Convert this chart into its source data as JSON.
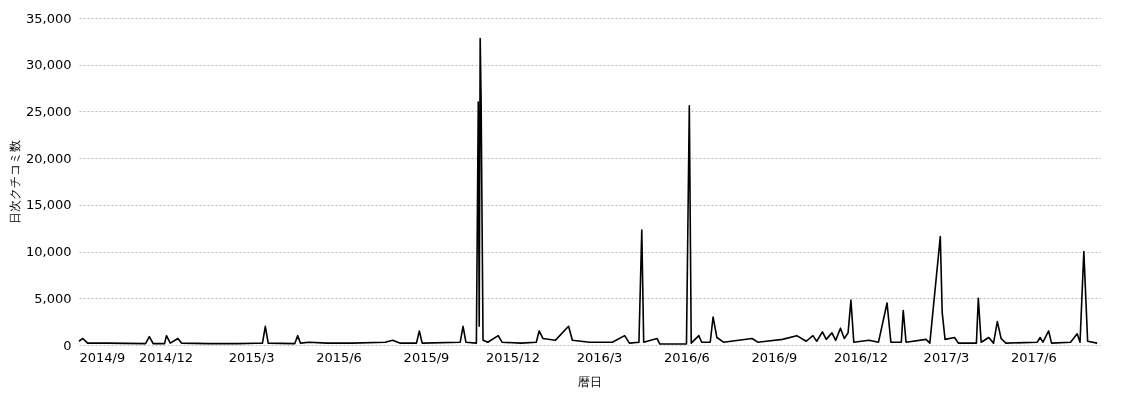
{
  "chart_data": {
    "type": "line",
    "xlabel": "暦日",
    "ylabel": "日次クチコミ数",
    "x": [
      "2014-09-01",
      "2014-09-05",
      "2014-09-10",
      "2014-10-01",
      "2014-11-10",
      "2014-11-14",
      "2014-11-18",
      "2014-11-30",
      "2014-12-02",
      "2014-12-06",
      "2014-12-14",
      "2014-12-18",
      "2015-01-15",
      "2015-02-15",
      "2015-03-13",
      "2015-03-16",
      "2015-03-19",
      "2015-04-16",
      "2015-04-19",
      "2015-04-22",
      "2015-05-01",
      "2015-05-20",
      "2015-06-15",
      "2015-07-20",
      "2015-07-28",
      "2015-08-05",
      "2015-08-22",
      "2015-08-25",
      "2015-08-28",
      "2015-10-07",
      "2015-10-10",
      "2015-10-13",
      "2015-10-24",
      "2015-10-26",
      "2015-10-27",
      "2015-10-28",
      "2015-10-29",
      "2015-10-31",
      "2015-11-05",
      "2015-11-16",
      "2015-11-20",
      "2015-12-10",
      "2015-12-26",
      "2015-12-29",
      "2016-01-02",
      "2016-01-15",
      "2016-01-29",
      "2016-02-02",
      "2016-02-20",
      "2016-03-15",
      "2016-03-28",
      "2016-04-02",
      "2016-04-12",
      "2016-04-15",
      "2016-04-17",
      "2016-05-01",
      "2016-05-04",
      "2016-06-01",
      "2016-06-04",
      "2016-06-06",
      "2016-06-14",
      "2016-06-17",
      "2016-06-26",
      "2016-06-29",
      "2016-07-03",
      "2016-07-10",
      "2016-08-09",
      "2016-08-15",
      "2016-09-10",
      "2016-09-25",
      "2016-10-05",
      "2016-10-12",
      "2016-10-16",
      "2016-10-22",
      "2016-10-26",
      "2016-11-01",
      "2016-11-05",
      "2016-11-10",
      "2016-11-14",
      "2016-11-18",
      "2016-11-21",
      "2016-11-24",
      "2016-12-10",
      "2016-12-20",
      "2016-12-29",
      "2017-01-02",
      "2017-01-13",
      "2017-01-15",
      "2017-01-18",
      "2017-02-08",
      "2017-02-12",
      "2017-02-23",
      "2017-02-25",
      "2017-02-28",
      "2017-03-10",
      "2017-03-14",
      "2017-04-02",
      "2017-04-04",
      "2017-04-07",
      "2017-04-15",
      "2017-04-20",
      "2017-04-24",
      "2017-04-28",
      "2017-05-03",
      "2017-06-05",
      "2017-06-08",
      "2017-06-11",
      "2017-06-17",
      "2017-06-20",
      "2017-07-10",
      "2017-07-17",
      "2017-07-20",
      "2017-07-24",
      "2017-07-28",
      "2017-08-07"
    ],
    "series": [
      {
        "color": "#000000",
        "values": [
          400,
          700,
          200,
          200,
          150,
          900,
          150,
          150,
          1000,
          200,
          700,
          200,
          150,
          150,
          200,
          2000,
          200,
          150,
          1000,
          200,
          300,
          200,
          200,
          300,
          500,
          200,
          200,
          1500,
          200,
          300,
          2000,
          300,
          200,
          26000,
          2000,
          32800,
          26000,
          500,
          300,
          1000,
          300,
          200,
          300,
          1500,
          700,
          500,
          2000,
          500,
          300,
          300,
          1000,
          200,
          300,
          12300,
          300,
          700,
          100,
          100,
          25600,
          200,
          1000,
          300,
          300,
          3000,
          800,
          300,
          700,
          300,
          600,
          1000,
          400,
          1000,
          400,
          1400,
          600,
          1300,
          500,
          1800,
          700,
          1300,
          4800,
          300,
          500,
          300,
          4500,
          300,
          300,
          3700,
          300,
          600,
          200,
          11600,
          3500,
          600,
          800,
          200,
          200,
          5000,
          300,
          800,
          200,
          2500,
          700,
          200,
          300,
          800,
          300,
          1500,
          200,
          300,
          1200,
          300,
          10000,
          400,
          200
        ]
      }
    ],
    "xlim": [
      "2014-09-01",
      "2017-08-10"
    ],
    "xticks": [
      {
        "value": "2014-09-01",
        "label": "2014/9"
      },
      {
        "value": "2014-12-01",
        "label": "2014/12"
      },
      {
        "value": "2015-03-01",
        "label": "2015/3"
      },
      {
        "value": "2015-06-01",
        "label": "2015/6"
      },
      {
        "value": "2015-09-01",
        "label": "2015/9"
      },
      {
        "value": "2015-12-01",
        "label": "2015/12"
      },
      {
        "value": "2016-03-01",
        "label": "2016/3"
      },
      {
        "value": "2016-06-01",
        "label": "2016/6"
      },
      {
        "value": "2016-09-01",
        "label": "2016/9"
      },
      {
        "value": "2016-12-01",
        "label": "2016/12"
      },
      {
        "value": "2017-03-01",
        "label": "2017/3"
      },
      {
        "value": "2017-06-01",
        "label": "2017/6"
      }
    ],
    "ylim": [
      0,
      35000
    ],
    "yticks": [
      {
        "value": 0,
        "label": "0"
      },
      {
        "value": 5000,
        "label": "5,000"
      },
      {
        "value": 10000,
        "label": "10,000"
      },
      {
        "value": 15000,
        "label": "15,000"
      },
      {
        "value": 20000,
        "label": "20,000"
      },
      {
        "value": 25000,
        "label": "25,000"
      },
      {
        "value": 30000,
        "label": "30,000"
      },
      {
        "value": 35000,
        "label": "35,000"
      }
    ],
    "grid": "y",
    "legend": false,
    "marker": "none",
    "line_style": "solid"
  }
}
